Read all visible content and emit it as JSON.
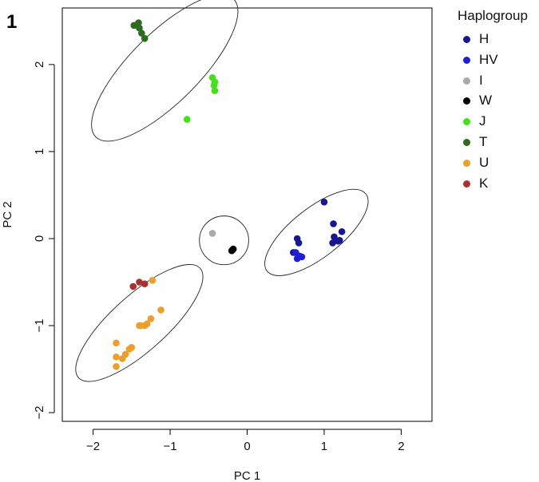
{
  "panel_label": "1",
  "chart_data": {
    "type": "scatter",
    "title": "",
    "xlabel": "PC 1",
    "ylabel": "PC 2",
    "xlim": [
      -2.4,
      2.4
    ],
    "ylim": [
      -2.1,
      2.65
    ],
    "x_ticks": [
      -2,
      -1,
      0,
      1,
      2
    ],
    "x_tick_labels": [
      "−2",
      "−1",
      "0",
      "1",
      "2"
    ],
    "y_ticks": [
      -2,
      -1,
      0,
      1,
      2
    ],
    "y_tick_labels": [
      "−2",
      "−1",
      "0",
      "1",
      "2"
    ],
    "grid": false,
    "legend_title": "Haplogroup",
    "legend_position": "right, outside plot",
    "series": [
      {
        "name": "H",
        "color": "#17178f",
        "points": [
          [
            1.0,
            0.42
          ],
          [
            1.12,
            0.17
          ],
          [
            1.23,
            0.08
          ],
          [
            1.13,
            0.02
          ],
          [
            1.2,
            -0.02
          ],
          [
            1.11,
            -0.05
          ],
          [
            1.18,
            -0.03
          ],
          [
            0.65,
            0.0
          ],
          [
            0.67,
            -0.05
          ],
          [
            0.6,
            -0.16
          ]
        ]
      },
      {
        "name": "HV",
        "color": "#1f1fd6",
        "points": [
          [
            0.63,
            -0.16
          ],
          [
            0.68,
            -0.2
          ],
          [
            0.65,
            -0.23
          ],
          [
            0.71,
            -0.21
          ]
        ]
      },
      {
        "name": "I",
        "color": "#a9a9a9",
        "points": [
          [
            -0.45,
            0.06
          ]
        ]
      },
      {
        "name": "W",
        "color": "#000000",
        "points": [
          [
            -0.2,
            -0.14
          ],
          [
            -0.18,
            -0.12
          ],
          [
            -0.19,
            -0.13
          ]
        ]
      },
      {
        "name": "J",
        "color": "#44e01c",
        "points": [
          [
            -0.45,
            1.85
          ],
          [
            -0.42,
            1.8
          ],
          [
            -0.43,
            1.76
          ],
          [
            -0.42,
            1.7
          ],
          [
            -0.78,
            1.37
          ]
        ]
      },
      {
        "name": "T",
        "color": "#2e6b1e",
        "points": [
          [
            -1.47,
            2.45
          ],
          [
            -1.41,
            2.48
          ],
          [
            -1.4,
            2.42
          ],
          [
            -1.37,
            2.36
          ],
          [
            -1.33,
            2.3
          ]
        ]
      },
      {
        "name": "U",
        "color": "#eba02e",
        "points": [
          [
            -1.23,
            -0.48
          ],
          [
            -1.12,
            -0.82
          ],
          [
            -1.25,
            -0.92
          ],
          [
            -1.3,
            -0.98
          ],
          [
            -1.33,
            -1.0
          ],
          [
            -1.38,
            -1.0
          ],
          [
            -1.5,
            -1.25
          ],
          [
            -1.53,
            -1.27
          ],
          [
            -1.58,
            -1.33
          ],
          [
            -1.62,
            -1.38
          ],
          [
            -1.7,
            -1.2
          ],
          [
            -1.7,
            -1.36
          ],
          [
            -1.7,
            -1.47
          ],
          [
            -1.4,
            -1.0
          ]
        ]
      },
      {
        "name": "K",
        "color": "#a83232",
        "points": [
          [
            -1.48,
            -0.55
          ],
          [
            -1.4,
            -0.5
          ],
          [
            -1.33,
            -0.52
          ]
        ]
      }
    ],
    "ellipses": [
      {
        "group": "T-J",
        "cx": -1.07,
        "cy": 1.96,
        "rx": 0.45,
        "ry": 1.12,
        "angle_deg": 45
      },
      {
        "group": "H-HV",
        "cx": 0.9,
        "cy": 0.07,
        "rx": 0.32,
        "ry": 0.72,
        "angle_deg": 52
      },
      {
        "group": "I-W",
        "cx": -0.3,
        "cy": -0.02,
        "rx": 0.32,
        "ry": 0.28,
        "angle_deg": 0
      },
      {
        "group": "U-K",
        "cx": -1.4,
        "cy": -0.97,
        "rx": 0.36,
        "ry": 0.94,
        "angle_deg": 48
      }
    ]
  }
}
